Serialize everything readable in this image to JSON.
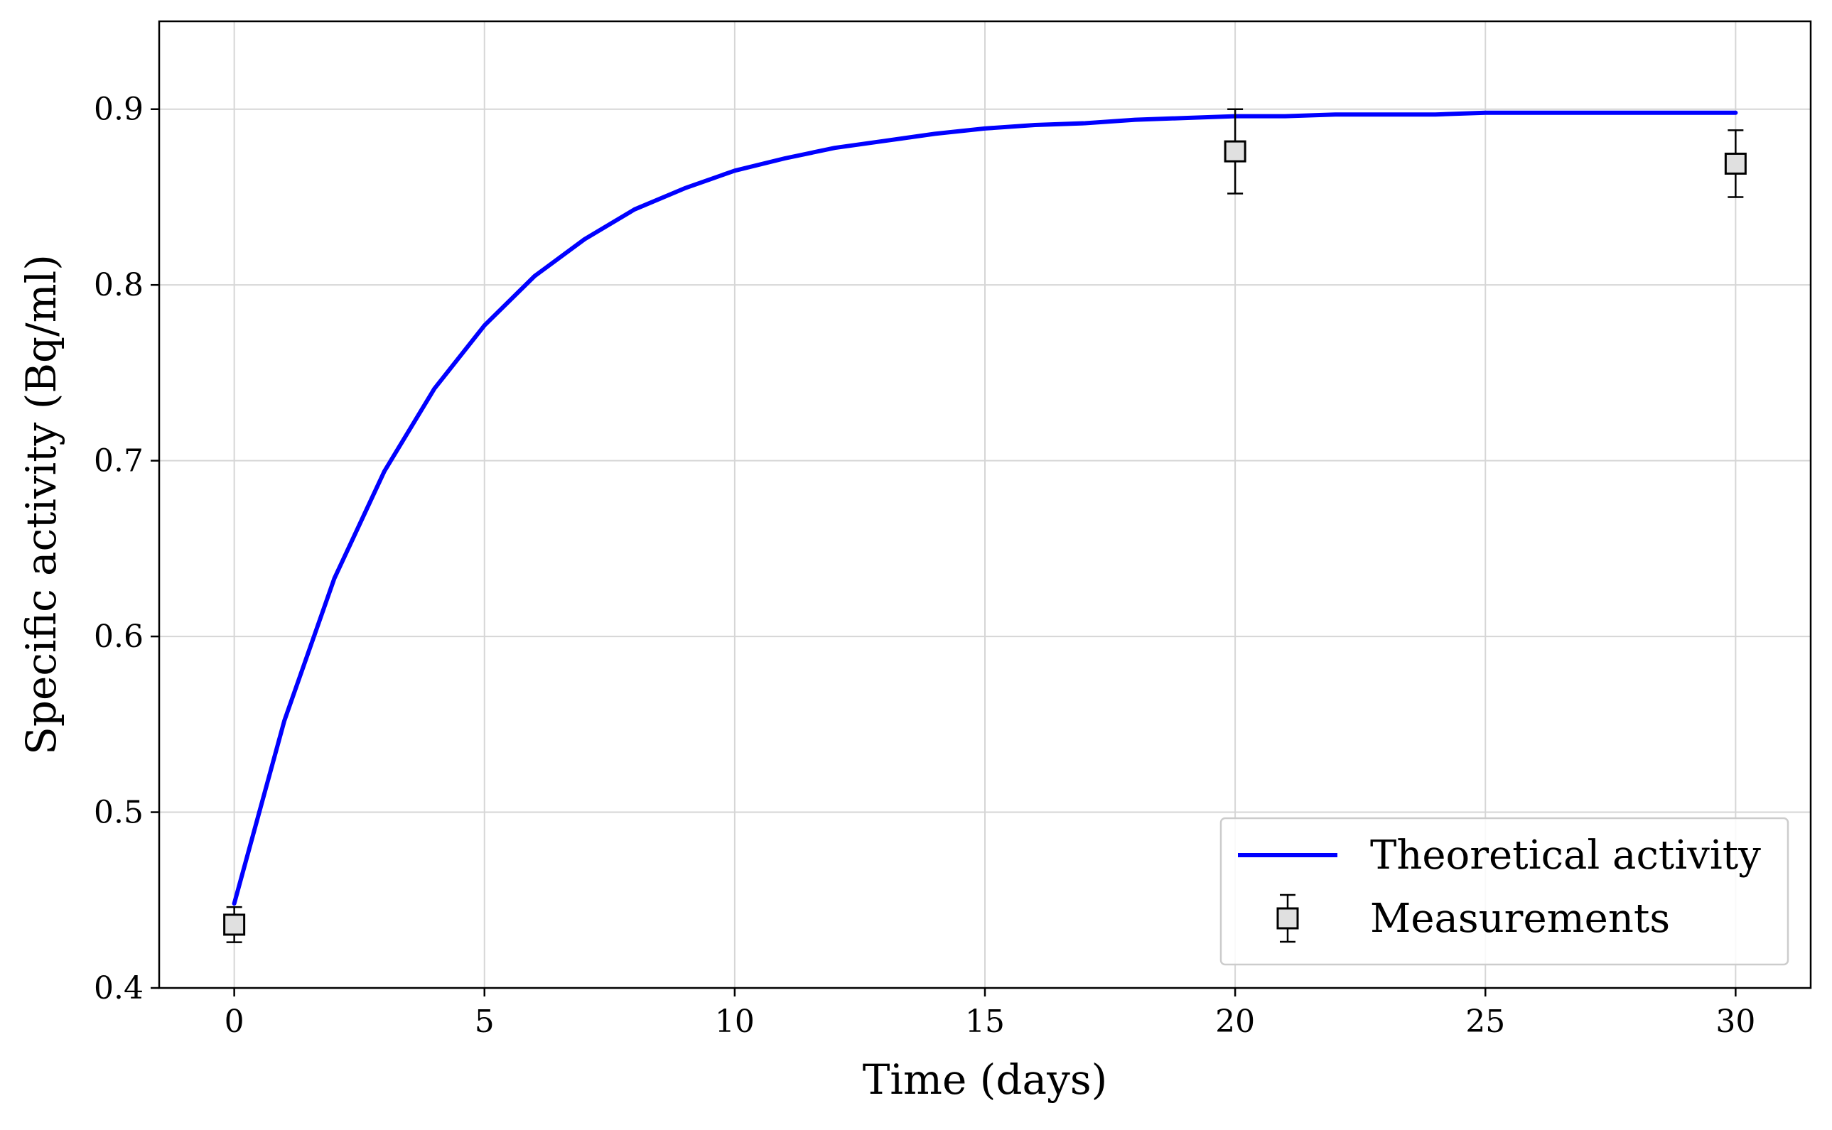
{
  "chart_data": {
    "type": "line",
    "title": "",
    "xlabel": "Time (days)",
    "ylabel": "Specific activity (Bq/ml)",
    "xlim": [
      -1.5,
      31.5
    ],
    "ylim": [
      0.4,
      0.95
    ],
    "xticks": [
      0,
      5,
      10,
      15,
      20,
      25,
      30
    ],
    "yticks": [
      0.4,
      0.5,
      0.6,
      0.7,
      0.8,
      0.9
    ],
    "grid": true,
    "legend_position": "bottom-right",
    "series": [
      {
        "name": "Theoretical activity",
        "kind": "line",
        "color": "#0000ff",
        "x": [
          0,
          1,
          2,
          3,
          4,
          5,
          6,
          7,
          8,
          9,
          10,
          11,
          12,
          13,
          14,
          15,
          16,
          17,
          18,
          19,
          20,
          21,
          22,
          23,
          24,
          25,
          26,
          27,
          28,
          29,
          30
        ],
        "y": [
          0.448,
          0.552,
          0.633,
          0.694,
          0.741,
          0.777,
          0.805,
          0.826,
          0.843,
          0.855,
          0.865,
          0.872,
          0.878,
          0.882,
          0.886,
          0.889,
          0.891,
          0.892,
          0.894,
          0.895,
          0.896,
          0.896,
          0.897,
          0.897,
          0.897,
          0.898,
          0.898,
          0.898,
          0.898,
          0.898,
          0.898
        ]
      },
      {
        "name": "Measurements",
        "kind": "errorbar",
        "marker": "square",
        "color": "#000000",
        "fill": "#e0e0e0",
        "x": [
          0,
          20,
          30
        ],
        "y": [
          0.436,
          0.876,
          0.869
        ],
        "yerr_low": [
          0.426,
          0.852,
          0.85
        ],
        "yerr_high": [
          0.446,
          0.9,
          0.888
        ]
      }
    ]
  }
}
